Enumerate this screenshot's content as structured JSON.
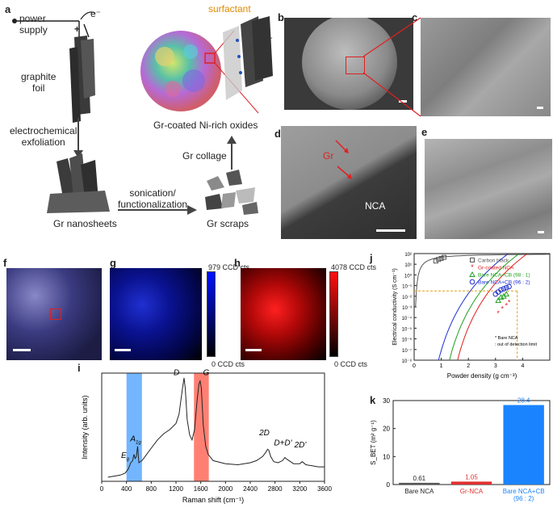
{
  "panel_a": {
    "letter": "a",
    "power_supply": "power\nsupply",
    "electron": "e⁻",
    "plus": "+",
    "graphite_foil": "graphite\nfoil",
    "exfoliation": "electrochemical\nexfoliation",
    "nanosheets": "Gr nanosheets",
    "sonication": "sonication/\nfunctionalization",
    "scraps": "Gr scraps",
    "collage": "Gr collage",
    "coated": "Gr-coated Ni-rich oxides",
    "surfactant": "surfactant",
    "gr": "Gr"
  },
  "panel_b": {
    "letter": "b"
  },
  "panel_c": {
    "letter": "c"
  },
  "panel_d": {
    "letter": "d",
    "gr": "Gr",
    "nca": "NCA"
  },
  "panel_e": {
    "letter": "e"
  },
  "panel_f": {
    "letter": "f"
  },
  "panel_g": {
    "letter": "g",
    "max": "979 CCD cts",
    "min": "0 CCD cts",
    "color_low": "#000000",
    "color_high": "#0011ff"
  },
  "panel_h": {
    "letter": "h",
    "max": "4078 CCD cts",
    "min": "0 CCD cts",
    "color_low": "#000000",
    "color_high": "#ff1010"
  },
  "chart_data": [
    {
      "panel": "i",
      "type": "line",
      "xlabel": "Raman shift (cm⁻¹)",
      "ylabel": "Intensity (arb. units)",
      "xlim": [
        0,
        3600
      ],
      "xticks": [
        "0",
        "400",
        "800",
        "1200",
        "1600",
        "2000",
        "2400",
        "2800",
        "3200",
        "3600"
      ],
      "x": [
        100,
        200,
        300,
        380,
        430,
        470,
        500,
        520,
        540,
        560,
        580,
        600,
        650,
        700,
        800,
        900,
        1000,
        1100,
        1200,
        1250,
        1300,
        1330,
        1350,
        1380,
        1420,
        1460,
        1500,
        1540,
        1570,
        1590,
        1610,
        1640,
        1680,
        1720,
        1800,
        2000,
        2200,
        2400,
        2500,
        2600,
        2650,
        2680,
        2700,
        2730,
        2780,
        2850,
        2920,
        2960,
        3000,
        3100,
        3200,
        3240,
        3300,
        3400,
        3500,
        3600
      ],
      "y": [
        0.04,
        0.05,
        0.06,
        0.08,
        0.12,
        0.18,
        0.2,
        0.26,
        0.22,
        0.24,
        0.34,
        0.18,
        0.2,
        0.24,
        0.32,
        0.4,
        0.46,
        0.5,
        0.56,
        0.65,
        0.88,
        1.0,
        0.9,
        0.6,
        0.45,
        0.4,
        0.5,
        0.78,
        0.94,
        0.97,
        0.9,
        0.55,
        0.34,
        0.26,
        0.2,
        0.17,
        0.16,
        0.18,
        0.2,
        0.24,
        0.28,
        0.31,
        0.3,
        0.24,
        0.19,
        0.18,
        0.2,
        0.23,
        0.21,
        0.17,
        0.17,
        0.19,
        0.16,
        0.15,
        0.14,
        0.14
      ],
      "bands": [
        {
          "name": "",
          "range": [
            400,
            650
          ],
          "color": "#5aa9ff"
        },
        {
          "name": "",
          "range": [
            1490,
            1730
          ],
          "color": "#ff6a5a"
        }
      ],
      "annotations": [
        {
          "text": "E",
          "sub": "g",
          "x": 430,
          "y": 0.18
        },
        {
          "text": "A",
          "sub": "1g",
          "x": 600,
          "y": 0.34
        },
        {
          "text": "D",
          "x": 1260,
          "y": 0.98
        },
        {
          "text": "G",
          "x": 1740,
          "y": 0.98
        },
        {
          "text": "2D",
          "x": 2680,
          "y": 0.4
        },
        {
          "text": "D+D'",
          "x": 2980,
          "y": 0.3
        },
        {
          "text": "2D'",
          "x": 3260,
          "y": 0.28
        }
      ]
    },
    {
      "panel": "j",
      "type": "scatter",
      "xlabel": "Powder density (g cm⁻³)",
      "ylabel": "Electrical conductivity (S cm⁻¹)",
      "xlim": [
        0,
        5
      ],
      "ylim_log": [
        -8,
        2
      ],
      "xticks": [
        "0",
        "1",
        "2",
        "3",
        "4"
      ],
      "yticks": [
        "10⁻⁸",
        "10⁻⁷",
        "10⁻⁶",
        "10⁻⁵",
        "10⁻⁴",
        "10⁻³",
        "10⁻²",
        "10⁻¹",
        "10⁰",
        "10¹",
        "10²"
      ],
      "series": [
        {
          "name": "Carbon black",
          "marker": "square",
          "color": "#555555",
          "x": [
            0.8,
            0.9,
            1.0,
            1.1
          ],
          "log_y": [
            1.3,
            1.45,
            1.55,
            1.65
          ]
        },
        {
          "name": "Gr-coated NCA",
          "marker": "star",
          "color": "#e02020",
          "x": [
            3.1,
            3.25,
            3.4,
            3.5
          ],
          "log_y": [
            -3.6,
            -3.2,
            -2.9,
            -2.6
          ]
        },
        {
          "name": "Bare NCA+CB (98 : 1)",
          "marker": "triangle",
          "color": "#20a020",
          "x": [
            3.1,
            3.2,
            3.3,
            3.4
          ],
          "log_y": [
            -2.4,
            -2.1,
            -2.0,
            -1.8
          ]
        },
        {
          "name": "Bare NCA+CB (96 : 2)",
          "marker": "circle",
          "color": "#2030d0",
          "x": [
            3.0,
            3.1,
            3.2,
            3.3,
            3.4,
            3.5
          ],
          "log_y": [
            -1.8,
            -1.6,
            -1.4,
            -1.3,
            -1.2,
            -1.1
          ]
        }
      ],
      "note": "* Bare NCA\n: out of detection limit",
      "reference_density": 3.8,
      "reference_log_y": -1.5
    },
    {
      "panel": "k",
      "type": "bar",
      "ylabel": "S_BET (m² g⁻¹)",
      "ylim": [
        0,
        30
      ],
      "yticks": [
        "0",
        "10",
        "20",
        "30"
      ],
      "categories": [
        "Bare NCA",
        "Gr-NCA",
        "Bare NCA+CB\n(96 : 2)"
      ],
      "values": [
        0.61,
        1.05,
        28.4
      ],
      "labels": [
        "0.61",
        "1.05",
        "28.4"
      ],
      "colors": [
        "#555555",
        "#e03030",
        "#1a84ff"
      ]
    }
  ],
  "letters": {
    "i": "i",
    "j": "j",
    "k": "k"
  }
}
